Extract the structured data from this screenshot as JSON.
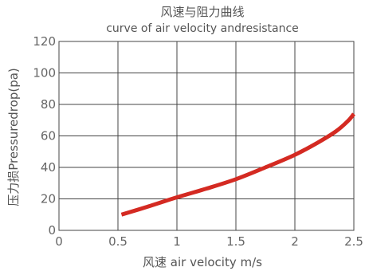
{
  "chart_data": {
    "type": "line",
    "title": "风速与阻力曲线",
    "subtitle": "curve of air velocity andresistance",
    "xlabel": "风速 air velocity m/s",
    "ylabel": "压力损Pressuredrop(pa)",
    "xlim": [
      0,
      2.5
    ],
    "ylim": [
      0,
      120
    ],
    "x_ticks": [
      "0",
      "0.5",
      "1",
      "1.5",
      "2",
      "2.5"
    ],
    "x_tick_values": [
      0,
      0.5,
      1,
      1.5,
      2,
      2.5
    ],
    "y_ticks": [
      "0",
      "20",
      "40",
      "60",
      "80",
      "100",
      "120"
    ],
    "y_tick_values": [
      0,
      20,
      40,
      60,
      80,
      100,
      120
    ],
    "grid": true,
    "legend": "none",
    "series": [
      {
        "color": "#d42a22",
        "x": [
          0.53,
          0.75,
          1.0,
          1.25,
          1.5,
          1.75,
          2.0,
          2.2,
          2.35,
          2.45,
          2.5
        ],
        "y": [
          10,
          15,
          21,
          26.5,
          32.5,
          40,
          48,
          56,
          63,
          69.5,
          74
        ]
      }
    ]
  }
}
